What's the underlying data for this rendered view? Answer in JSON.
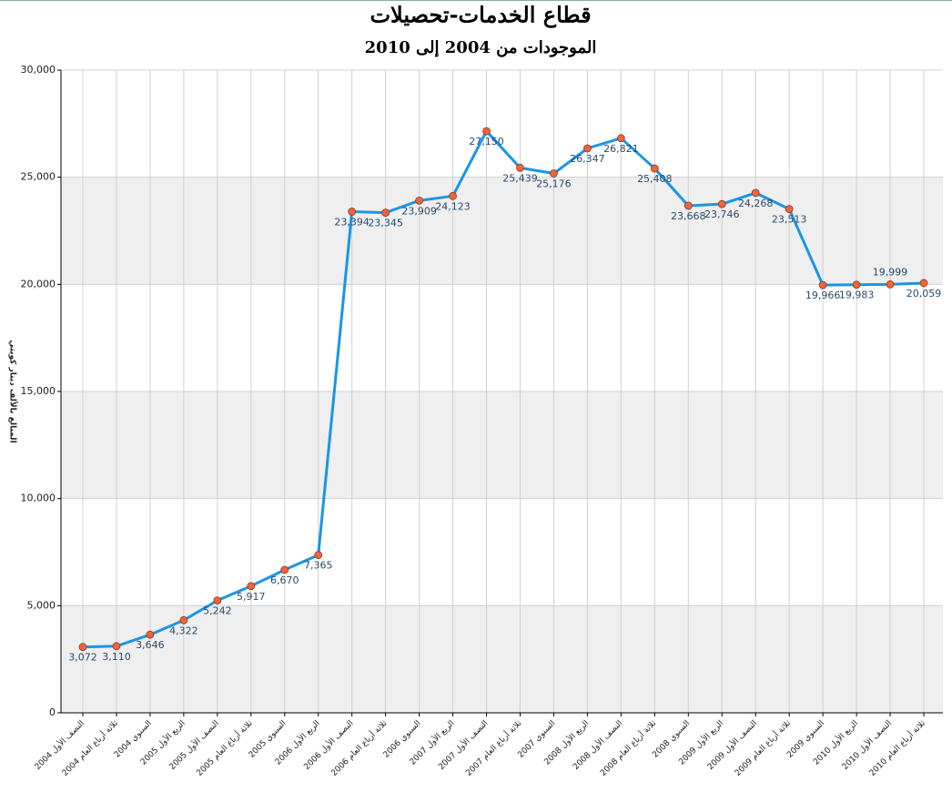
{
  "chart_data": {
    "type": "line",
    "title": "قطاع الخدمات-تحصيلات",
    "subtitle": "الموجودات من 2004 إلى 2010",
    "y_label": "المبالغ بالألف دينار كويتي",
    "categories": [
      "النصف الأول 2004",
      "ثلاثة أرباع العام 2004",
      "السنوي 2004",
      "الربع الأول 2005",
      "النصف الأول 2005",
      "ثلاثة أرباع العام 2005",
      "السنوي 2005",
      "الربع الأول 2006",
      "النصف الأول 2006",
      "ثلاثة أرباع العام 2006",
      "السنوي 2006",
      "الربع الأول 2007",
      "النصف الأول 2007",
      "ثلاثة أرباع العام 2007",
      "السنوي 2007",
      "الربع الأول 2008",
      "النصف الأول 2008",
      "ثلاثة أرباع العام 2008",
      "السنوي 2008",
      "الربع الأول 2009",
      "النصف الأول 2009",
      "ثلاثة أرباع العام 2009",
      "السنوي 2009",
      "الربع الأول 2010",
      "النصف الأول 2010",
      "ثلاثة أرباع العام 2010"
    ],
    "values": [
      3072,
      3110,
      3646,
      4322,
      5242,
      5917,
      6670,
      7365,
      23394,
      23345,
      23909,
      24123,
      27150,
      25439,
      25176,
      26347,
      26821,
      25408,
      23668,
      23746,
      24268,
      23513,
      19966,
      19983,
      19999,
      20059
    ],
    "value_labels": [
      "3,072",
      "3,110",
      "3,646",
      "4,322",
      "5,242",
      "5,917",
      "6,670",
      "7,365",
      "23,394",
      "23,345",
      "23,909",
      "24,123",
      "27,150",
      "25,439",
      "25,176",
      "26,347",
      "26,821",
      "25,408",
      "23,668",
      "23,746",
      "24,268",
      "23,513",
      "19,966",
      "19,983",
      "19,999",
      "20,059"
    ],
    "color": "#1a95e8",
    "marker_color": "#f0643c",
    "ylim": [
      0,
      30000
    ],
    "yticks": [
      0,
      {
        "value": 5000,
        "label": "5,000"
      },
      {
        "value": 10000,
        "label": "10,000"
      },
      {
        "value": 15000,
        "label": "15,000"
      },
      {
        "value": 20000,
        "label": "20,000"
      },
      {
        "value": 25000,
        "label": "25,000"
      },
      {
        "value": 30000,
        "label": "30,000"
      }
    ],
    "grid": true
  }
}
